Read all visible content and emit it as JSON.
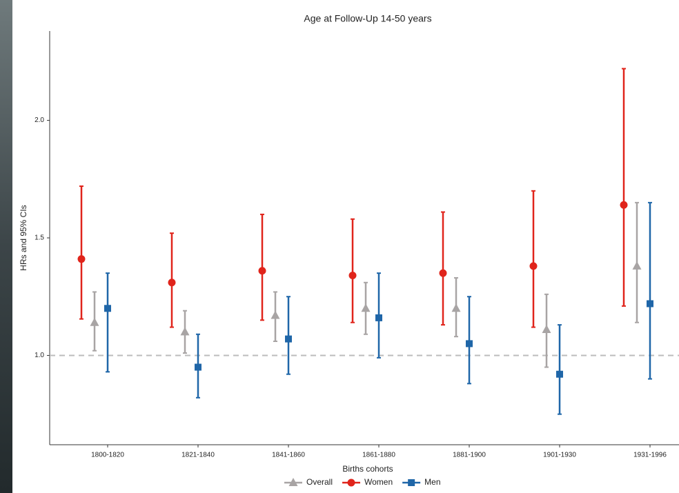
{
  "chart_data": {
    "type": "errorbar",
    "title": "Age at Follow-Up 14-50 years",
    "x_label": "Births cohorts",
    "y_label": "HRs and 95% CIs",
    "categories": [
      "1800-1820",
      "1821-1840",
      "1841-1860",
      "1861-1880",
      "1881-1900",
      "1901-1930",
      "1931-1996"
    ],
    "ylim": [
      0.62,
      2.38
    ],
    "yticks": [
      {
        "value": 1,
        "label": "1.0"
      },
      {
        "value": 1.5,
        "label": "1.5"
      },
      {
        "value": 2,
        "label": "2.0"
      }
    ],
    "reference_line": 1,
    "series": [
      {
        "name": "Overall",
        "color": "#a8a4a4",
        "marker": "triangle",
        "values": [
          1.14,
          1.1,
          1.17,
          1.2,
          1.2,
          1.11,
          1.38
        ],
        "lower": [
          1.02,
          1.01,
          1.06,
          1.09,
          1.08,
          0.95,
          1.14
        ],
        "upper": [
          1.27,
          1.19,
          1.27,
          1.31,
          1.33,
          1.26,
          1.65
        ]
      },
      {
        "name": "Women",
        "color": "#e0241b",
        "marker": "circle",
        "values": [
          1.41,
          1.31,
          1.36,
          1.34,
          1.35,
          1.38,
          1.64
        ],
        "lower": [
          1.155,
          1.12,
          1.15,
          1.14,
          1.13,
          1.12,
          1.21
        ],
        "upper": [
          1.72,
          1.52,
          1.6,
          1.58,
          1.61,
          1.7,
          2.22
        ]
      },
      {
        "name": "Men",
        "color": "#1f66a8",
        "marker": "square",
        "values": [
          1.2,
          0.95,
          1.07,
          1.16,
          1.05,
          0.92,
          1.22
        ],
        "lower": [
          0.93,
          0.82,
          0.92,
          0.99,
          0.88,
          0.75,
          0.9
        ],
        "upper": [
          1.35,
          1.09,
          1.25,
          1.35,
          1.25,
          1.13,
          1.65
        ]
      }
    ]
  }
}
